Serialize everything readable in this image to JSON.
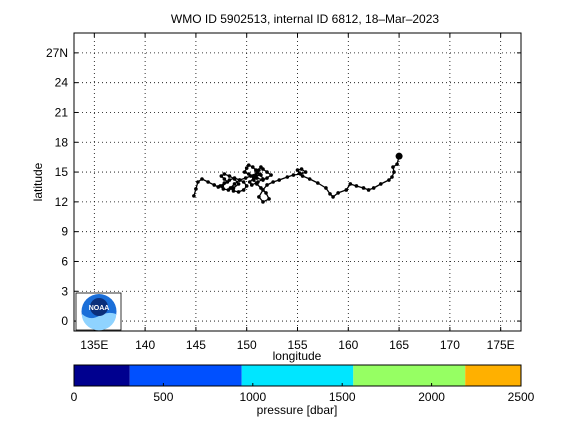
{
  "chart_data": {
    "type": "line",
    "title": "WMO ID 5902513, internal ID 6812, 18–Mar–2023",
    "xlabel": "longitude",
    "ylabel": "latitude",
    "xlim": [
      133,
      177
    ],
    "ylim": [
      -1,
      29
    ],
    "xticks": [
      135,
      140,
      145,
      150,
      155,
      160,
      165,
      170,
      175
    ],
    "xtick_labels": [
      "135E",
      "140",
      "145",
      "150",
      "155",
      "160",
      "165",
      "170",
      "175E"
    ],
    "yticks": [
      0,
      3,
      6,
      9,
      12,
      15,
      18,
      21,
      24,
      27
    ],
    "ytick_labels": [
      "0",
      "3",
      "6",
      "9",
      "12",
      "15",
      "18",
      "21",
      "24",
      "27N"
    ],
    "grid": true,
    "trajectory": {
      "x": [
        165.0,
        164.8,
        164.4,
        164.5,
        164.3,
        164.0,
        163.2,
        162.5,
        162.0,
        161.5,
        160.8,
        160.2,
        159.8,
        159.0,
        158.5,
        158.2,
        157.8,
        157.0,
        156.2,
        155.5,
        155.2,
        155.0,
        155.4,
        155.8,
        155.3,
        154.6,
        154.0,
        153.2,
        152.6,
        152.0,
        151.6,
        151.2,
        151.6,
        152.2,
        151.9,
        151.4,
        151.0,
        150.7,
        150.9,
        151.4,
        151.6,
        151.1,
        150.5,
        150.3,
        150.7,
        151.3,
        150.9,
        150.6,
        150.2,
        150.0,
        149.8,
        150.2,
        150.6,
        151.0,
        151.6,
        152.0,
        152.4,
        152.0,
        151.6,
        151.4,
        151.2,
        151.0,
        150.4,
        149.9,
        149.3,
        148.8,
        148.4,
        148.7,
        149.2,
        149.7,
        150.0,
        149.7,
        149.3,
        148.8,
        148.3,
        147.8,
        147.4,
        147.7,
        148.2,
        148.7,
        149.2,
        148.8,
        148.3,
        147.8,
        147.5,
        147.8,
        148.1,
        147.6,
        147.2,
        146.8,
        146.2,
        145.6,
        145.2,
        145.0,
        144.8
      ],
      "y": [
        16.6,
        15.8,
        15.5,
        15.0,
        14.5,
        14.2,
        13.8,
        13.4,
        13.2,
        13.4,
        13.6,
        13.8,
        13.2,
        12.9,
        12.5,
        12.8,
        13.4,
        13.9,
        14.3,
        14.6,
        14.9,
        15.2,
        15.3,
        15.0,
        14.8,
        14.7,
        14.5,
        14.2,
        14.0,
        13.7,
        13.2,
        12.5,
        12.0,
        12.3,
        12.9,
        13.4,
        13.8,
        14.2,
        14.6,
        14.7,
        14.3,
        14.0,
        13.7,
        14.0,
        14.4,
        14.8,
        15.2,
        15.5,
        15.7,
        15.4,
        15.0,
        14.8,
        14.6,
        14.4,
        14.2,
        14.4,
        14.7,
        15.0,
        15.3,
        15.5,
        15.2,
        14.9,
        14.6,
        14.4,
        14.2,
        13.8,
        13.4,
        13.1,
        13.0,
        13.2,
        13.6,
        14.0,
        14.2,
        14.4,
        14.2,
        13.9,
        13.6,
        13.3,
        13.2,
        13.4,
        13.8,
        14.3,
        14.6,
        14.8,
        14.6,
        14.3,
        14.0,
        13.6,
        13.5,
        13.7,
        14.0,
        14.3,
        14.0,
        13.3,
        12.6
      ],
      "last_position": [
        165.0,
        16.6
      ],
      "color": "#000000"
    },
    "colorbar": {
      "label": "pressure [dbar]",
      "range": [
        0,
        2500
      ],
      "ticks": [
        0,
        500,
        1000,
        1500,
        2000,
        2500
      ],
      "tick_labels": [
        "0",
        "500",
        "1000",
        "1500",
        "2000",
        "2500"
      ],
      "segments": [
        {
          "from": 0,
          "to": 312,
          "color": "#00008f"
        },
        {
          "from": 312,
          "to": 938,
          "color": "#0050ff"
        },
        {
          "from": 938,
          "to": 1562,
          "color": "#00e6ff"
        },
        {
          "from": 1562,
          "to": 2188,
          "color": "#96ff63"
        },
        {
          "from": 2188,
          "to": 2500,
          "color": "#ffb000"
        }
      ]
    },
    "logo": {
      "text": "NOAA",
      "colors": {
        "blue": "#1a6ed8",
        "light": "#8fd3ff",
        "navy": "#0b2f7a"
      }
    }
  }
}
